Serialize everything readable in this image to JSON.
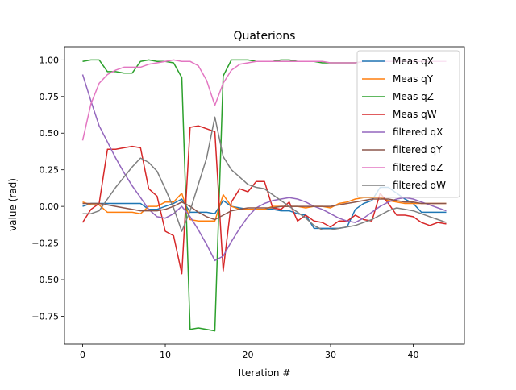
{
  "chart_data": {
    "type": "line",
    "title": "Quaterions",
    "xlabel": "Iteration #",
    "ylabel": "value (rad)",
    "xlim": [
      -2.2,
      46.2
    ],
    "ylim": [
      -0.94,
      1.09
    ],
    "x_ticks": [
      0,
      10,
      20,
      30,
      40
    ],
    "y_ticks": [
      -0.75,
      -0.5,
      -0.25,
      0.0,
      0.25,
      0.5,
      0.75,
      1.0
    ],
    "y_tick_labels": [
      "−0.75",
      "−0.50",
      "−0.25",
      "0.00",
      "0.25",
      "0.50",
      "0.75",
      "1.00"
    ],
    "grid": false,
    "legend_position": "upper right",
    "series": [
      {
        "name": "Meas qX",
        "color": "#1f77b4",
        "values": [
          0.0,
          0.02,
          0.02,
          0.02,
          0.02,
          0.02,
          0.02,
          0.02,
          -0.02,
          -0.02,
          0.0,
          0.02,
          0.05,
          -0.04,
          -0.04,
          -0.04,
          -0.05,
          0.04,
          0.0,
          -0.01,
          -0.02,
          -0.02,
          -0.02,
          -0.02,
          -0.03,
          -0.03,
          -0.05,
          -0.06,
          -0.15,
          -0.15,
          -0.15,
          -0.15,
          -0.14,
          -0.02,
          0.02,
          0.04,
          0.13,
          0.13,
          0.09,
          0.05,
          0.02,
          -0.04,
          -0.04,
          -0.04,
          -0.04
        ]
      },
      {
        "name": "Meas qY",
        "color": "#ff7f0e",
        "values": [
          0.03,
          0.01,
          0.01,
          -0.04,
          -0.04,
          -0.04,
          -0.04,
          -0.05,
          0.0,
          0.0,
          0.03,
          0.03,
          0.09,
          -0.09,
          -0.1,
          -0.1,
          -0.1,
          0.08,
          0.0,
          -0.02,
          -0.02,
          -0.02,
          -0.02,
          0.0,
          0.0,
          0.0,
          0.0,
          -0.01,
          0.0,
          0.0,
          -0.01,
          0.02,
          0.03,
          0.05,
          0.06,
          0.06,
          0.06,
          0.04,
          0.03,
          0.02,
          0.02,
          0.02,
          0.02,
          0.02,
          0.02
        ]
      },
      {
        "name": "Meas qZ",
        "color": "#2ca02c",
        "values": [
          0.99,
          1.0,
          1.0,
          0.92,
          0.92,
          0.91,
          0.91,
          0.99,
          1.0,
          0.99,
          0.99,
          0.98,
          0.88,
          -0.84,
          -0.83,
          -0.84,
          -0.85,
          0.89,
          1.0,
          1.0,
          1.0,
          0.99,
          0.99,
          0.99,
          1.0,
          1.0,
          0.99,
          0.99,
          0.99,
          0.98,
          0.98,
          0.98,
          0.98,
          0.98,
          0.99,
          0.99,
          0.99,
          0.99,
          0.99,
          0.99,
          0.99,
          0.99,
          0.99,
          0.99,
          0.99
        ]
      },
      {
        "name": "Meas qW",
        "color": "#d62728",
        "values": [
          -0.11,
          -0.02,
          0.02,
          0.39,
          0.39,
          0.4,
          0.41,
          0.4,
          0.12,
          0.07,
          -0.17,
          -0.2,
          -0.46,
          0.54,
          0.55,
          0.53,
          0.51,
          -0.44,
          0.03,
          0.12,
          0.1,
          0.17,
          0.17,
          -0.01,
          -0.02,
          0.03,
          -0.1,
          -0.06,
          -0.1,
          -0.11,
          -0.14,
          -0.1,
          -0.1,
          -0.06,
          -0.09,
          -0.1,
          0.09,
          0.02,
          -0.06,
          -0.06,
          -0.07,
          -0.11,
          -0.13,
          -0.11,
          -0.12
        ]
      },
      {
        "name": "filtered qX",
        "color": "#9467bd",
        "values": [
          0.9,
          0.72,
          0.55,
          0.44,
          0.33,
          0.23,
          0.14,
          0.06,
          -0.02,
          -0.07,
          -0.08,
          -0.05,
          0.0,
          -0.07,
          -0.16,
          -0.26,
          -0.37,
          -0.34,
          -0.24,
          -0.15,
          -0.07,
          -0.01,
          0.02,
          0.04,
          0.05,
          0.06,
          0.05,
          0.03,
          0.0,
          -0.02,
          -0.05,
          -0.08,
          -0.1,
          -0.11,
          -0.08,
          -0.04,
          0.0,
          0.03,
          0.05,
          0.06,
          0.05,
          0.03,
          0.01,
          -0.01,
          -0.03
        ]
      },
      {
        "name": "filtered qY",
        "color": "#8c564b",
        "values": [
          0.02,
          0.02,
          0.02,
          0.01,
          0.0,
          -0.01,
          -0.02,
          -0.03,
          -0.03,
          -0.03,
          -0.02,
          0.0,
          0.03,
          0.0,
          -0.04,
          -0.07,
          -0.09,
          -0.06,
          -0.03,
          -0.02,
          -0.01,
          -0.01,
          -0.01,
          -0.01,
          0.0,
          0.0,
          0.0,
          0.0,
          0.0,
          0.0,
          0.0,
          0.01,
          0.02,
          0.03,
          0.04,
          0.05,
          0.05,
          0.05,
          0.04,
          0.03,
          0.03,
          0.02,
          0.02,
          0.02,
          0.02
        ]
      },
      {
        "name": "filtered qZ",
        "color": "#e377c2",
        "values": [
          0.45,
          0.7,
          0.84,
          0.9,
          0.93,
          0.95,
          0.95,
          0.95,
          0.97,
          0.98,
          0.99,
          1.0,
          0.99,
          0.99,
          0.96,
          0.86,
          0.69,
          0.84,
          0.93,
          0.97,
          0.98,
          0.99,
          0.99,
          0.99,
          0.99,
          0.99,
          0.99,
          0.99,
          0.99,
          0.99,
          0.98,
          0.98,
          0.98,
          0.98,
          0.99,
          0.99,
          0.99,
          0.99,
          0.99,
          0.99,
          0.99,
          0.99,
          0.99,
          0.99,
          0.99
        ]
      },
      {
        "name": "filtered qW",
        "color": "#7f7f7f",
        "values": [
          -0.05,
          -0.05,
          -0.03,
          0.05,
          0.13,
          0.2,
          0.27,
          0.33,
          0.3,
          0.24,
          0.12,
          -0.01,
          -0.17,
          -0.03,
          0.15,
          0.33,
          0.61,
          0.34,
          0.25,
          0.2,
          0.15,
          0.13,
          0.12,
          0.08,
          0.04,
          0.0,
          -0.04,
          -0.08,
          -0.13,
          -0.16,
          -0.16,
          -0.15,
          -0.14,
          -0.13,
          -0.11,
          -0.09,
          -0.06,
          -0.03,
          -0.01,
          -0.02,
          -0.03,
          -0.05,
          -0.07,
          -0.09,
          -0.11
        ]
      }
    ]
  }
}
